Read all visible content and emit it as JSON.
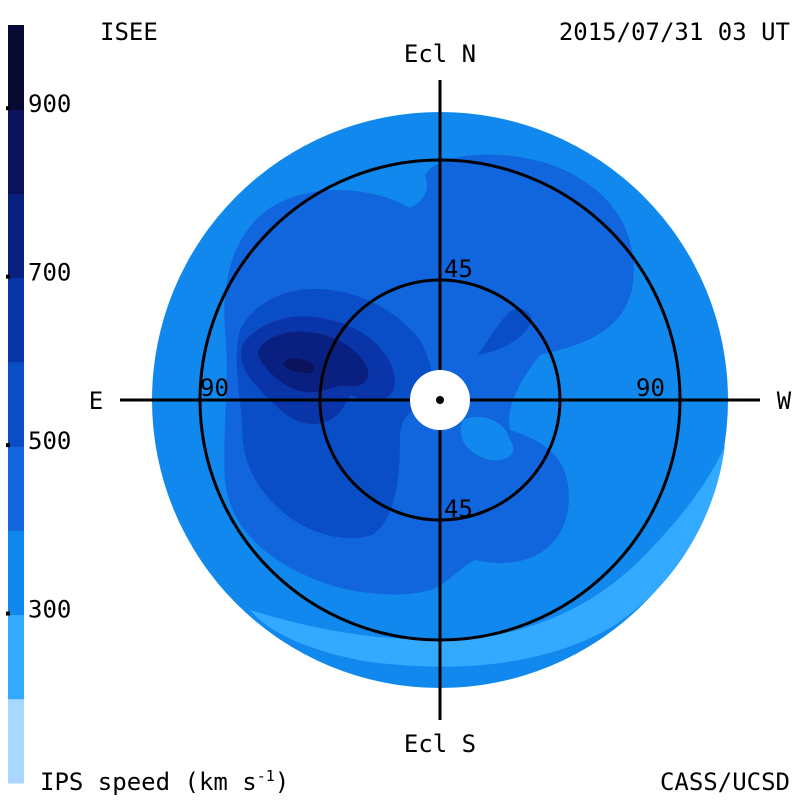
{
  "header": {
    "org_left": "ISEE",
    "timestamp": "2015/07/31 03 UT"
  },
  "footer": {
    "colorbar_title": "IPS speed (km s",
    "colorbar_title_exp": "-1",
    "colorbar_title_close": ")",
    "org_right": "CASS/UCSD"
  },
  "directions": {
    "north": "Ecl N",
    "south": "Ecl S",
    "east": "E",
    "west": "W"
  },
  "chart_data": {
    "type": "heatmap",
    "projection": "polar sky map (elongation from Sun)",
    "colorbar": {
      "orientation": "vertical",
      "placement": "left",
      "tick_labels": [
        "900",
        "700",
        "500",
        "300"
      ],
      "tick_values": [
        900,
        700,
        500,
        300
      ],
      "bands": [
        {
          "min": 100,
          "max": 200,
          "color": "#a8d8ff"
        },
        {
          "min": 200,
          "max": 300,
          "color": "#33aaff"
        },
        {
          "min": 300,
          "max": 400,
          "color": "#1188ee"
        },
        {
          "min": 400,
          "max": 500,
          "color": "#1166dd"
        },
        {
          "min": 500,
          "max": 600,
          "color": "#0a4ec7"
        },
        {
          "min": 600,
          "max": 700,
          "color": "#0a35a8"
        },
        {
          "min": 700,
          "max": 800,
          "color": "#0a2080"
        },
        {
          "min": 800,
          "max": 900,
          "color": "#0a135c"
        },
        {
          "min": 900,
          "max": 1000,
          "color": "#060a33"
        }
      ]
    },
    "elongation_circles": [
      45,
      90
    ],
    "elongation_labels": [
      "45",
      "45",
      "90",
      "90"
    ],
    "regions": [
      {
        "level": 350,
        "color": "#1188ee",
        "shape": "disk",
        "radius_deg": 108
      },
      {
        "level": 250,
        "color": "#33aaff",
        "shape": "lower-right rim band"
      },
      {
        "level": 450,
        "color": "#1166dd",
        "shape": "broad central lobe"
      },
      {
        "level": 550,
        "color": "#0a4ec7",
        "shape": "eastern inner lobe"
      },
      {
        "level": 650,
        "color": "#0a35a8",
        "shape": "eastern core"
      },
      {
        "level": 750,
        "color": "#0a2080",
        "shape": "eastern peak"
      },
      {
        "level": 850,
        "color": "#0a135c",
        "shape": "eastern spot"
      }
    ]
  }
}
